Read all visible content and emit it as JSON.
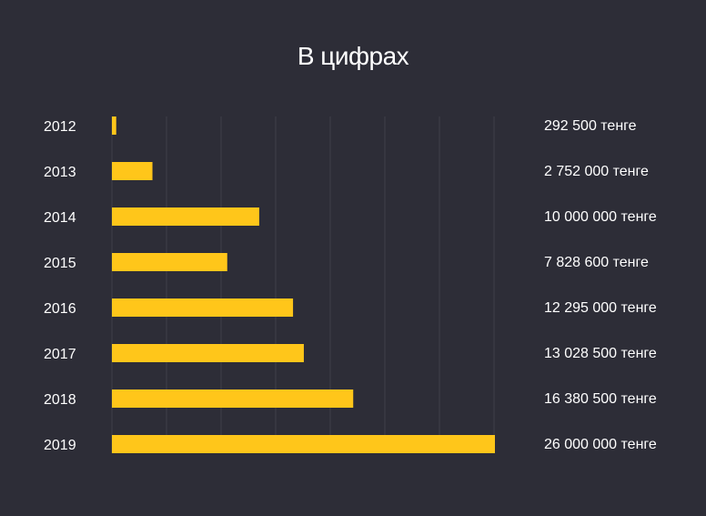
{
  "chart_data": {
    "type": "bar",
    "orientation": "horizontal",
    "title": "В цифрах",
    "categories": [
      "2012",
      "2013",
      "2014",
      "2015",
      "2016",
      "2017",
      "2018",
      "2019"
    ],
    "values": [
      292500,
      2752000,
      10000000,
      7828600,
      12295000,
      13028500,
      16380500,
      26000000
    ],
    "value_labels": [
      "292 500 тенге",
      "2 752 000 тенге",
      "10 000 000 тенге",
      "7 828 600 тенге",
      "12 295 000 тенге",
      "13 028 500 тенге",
      "16 380 500 тенге",
      "26 000 000 тенге"
    ],
    "xlim": [
      0,
      26000000
    ],
    "grid": true,
    "legend": "none",
    "colors": {
      "background": "#2d2d37",
      "bar": "#ffc61a",
      "grid": "#3f3f4a",
      "text": "#ffffff"
    }
  }
}
